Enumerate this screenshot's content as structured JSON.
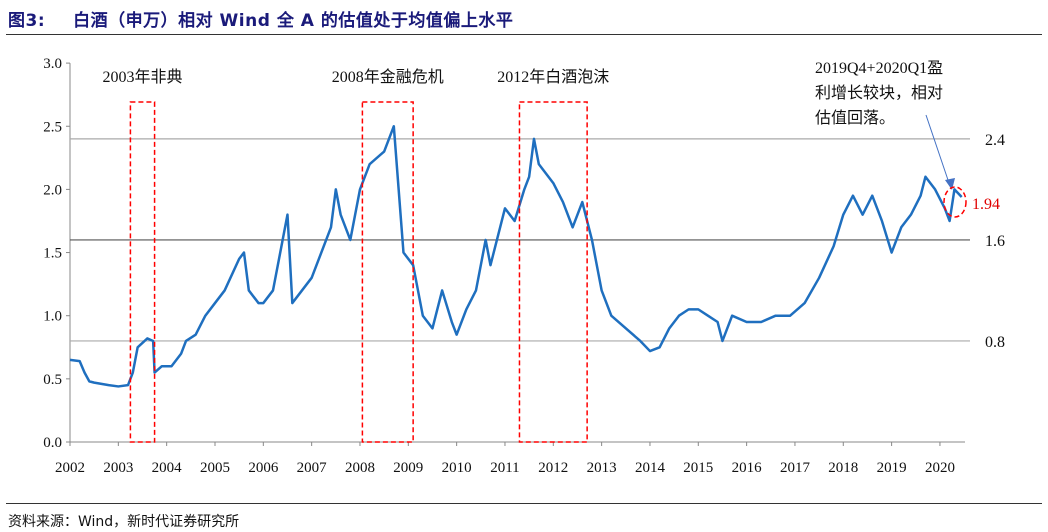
{
  "title": {
    "figure": "图3:",
    "text": "白酒（申万）相对 Wind 全 A 的估值处于均值偏上水平"
  },
  "source": "资料来源：Wind，新时代证券研究所",
  "chart_data": {
    "type": "line",
    "title": "白酒（申万）相对 Wind 全 A 的估值处于均值偏上水平",
    "xlabel": "",
    "ylabel": "",
    "xlim": [
      2002,
      2020.6
    ],
    "ylim": [
      0,
      3.0
    ],
    "x_ticks": [
      "2002",
      "2003",
      "2004",
      "2005",
      "2006",
      "2007",
      "2008",
      "2009",
      "2010",
      "2011",
      "2012",
      "2013",
      "2014",
      "2015",
      "2016",
      "2017",
      "2018",
      "2019",
      "2020"
    ],
    "y_ticks": [
      "0.0",
      "0.5",
      "1.0",
      "1.5",
      "2.0",
      "2.5",
      "3.0"
    ],
    "series": [
      {
        "name": "白酒相对Wind全A估值",
        "color": "#1f6fbf",
        "x": [
          2002.0,
          2002.2,
          2002.3,
          2002.4,
          2002.5,
          2002.8,
          2003.0,
          2003.2,
          2003.3,
          2003.4,
          2003.6,
          2003.72,
          2003.75,
          2003.9,
          2004.1,
          2004.3,
          2004.4,
          2004.6,
          2004.8,
          2005.0,
          2005.2,
          2005.5,
          2005.6,
          2005.7,
          2005.9,
          2006.0,
          2006.2,
          2006.4,
          2006.5,
          2006.6,
          2006.8,
          2007.0,
          2007.2,
          2007.4,
          2007.5,
          2007.6,
          2007.8,
          2008.0,
          2008.2,
          2008.5,
          2008.7,
          2008.8,
          2008.9,
          2009.1,
          2009.3,
          2009.5,
          2009.7,
          2009.9,
          2010.0,
          2010.2,
          2010.4,
          2010.6,
          2010.7,
          2010.9,
          2011.0,
          2011.2,
          2011.4,
          2011.5,
          2011.6,
          2011.7,
          2012.0,
          2012.2,
          2012.4,
          2012.6,
          2012.8,
          2013.0,
          2013.2,
          2013.5,
          2013.8,
          2014.0,
          2014.2,
          2014.4,
          2014.6,
          2014.8,
          2015.0,
          2015.2,
          2015.4,
          2015.5,
          2015.7,
          2016.0,
          2016.3,
          2016.6,
          2016.9,
          2017.2,
          2017.5,
          2017.8,
          2018.0,
          2018.2,
          2018.4,
          2018.6,
          2018.8,
          2019.0,
          2019.2,
          2019.4,
          2019.6,
          2019.7,
          2019.9,
          2020.1,
          2020.2,
          2020.3,
          2020.45
        ],
        "y": [
          0.65,
          0.64,
          0.55,
          0.48,
          0.47,
          0.45,
          0.44,
          0.45,
          0.55,
          0.75,
          0.82,
          0.8,
          0.55,
          0.6,
          0.6,
          0.7,
          0.8,
          0.85,
          1.0,
          1.1,
          1.2,
          1.45,
          1.5,
          1.2,
          1.1,
          1.1,
          1.2,
          1.6,
          1.8,
          1.1,
          1.2,
          1.3,
          1.5,
          1.7,
          2.0,
          1.8,
          1.6,
          2.0,
          2.2,
          2.3,
          2.5,
          2.0,
          1.5,
          1.4,
          1.0,
          0.9,
          1.2,
          0.95,
          0.85,
          1.05,
          1.2,
          1.6,
          1.4,
          1.7,
          1.85,
          1.75,
          2.0,
          2.1,
          2.4,
          2.2,
          2.05,
          1.9,
          1.7,
          1.9,
          1.6,
          1.2,
          1.0,
          0.9,
          0.8,
          0.72,
          0.75,
          0.9,
          1.0,
          1.05,
          1.05,
          1.0,
          0.95,
          0.8,
          1.0,
          0.95,
          0.95,
          1.0,
          1.0,
          1.1,
          1.3,
          1.55,
          1.8,
          1.95,
          1.8,
          1.95,
          1.75,
          1.5,
          1.7,
          1.8,
          1.95,
          2.1,
          2.0,
          1.85,
          1.75,
          2.0,
          1.94
        ]
      }
    ],
    "reference_lines": [
      {
        "value": 2.4,
        "label": "2.4",
        "color": "#aaaaaa"
      },
      {
        "value": 1.6,
        "label": "1.6",
        "color": "#555555"
      },
      {
        "value": 0.8,
        "label": "0.8",
        "color": "#aaaaaa"
      }
    ],
    "highlight_periods": [
      {
        "label": "2003年非典",
        "start": 2003.25,
        "end": 2003.75
      },
      {
        "label": "2008年金融危机",
        "start": 2008.05,
        "end": 2009.1
      },
      {
        "label": "2012年白酒泡沫",
        "start": 2011.3,
        "end": 2012.7
      }
    ],
    "annotations": [
      {
        "lines": [
          "2019Q4+2020Q1盈",
          "利增长较块，相对",
          "估值回落。"
        ],
        "x": 2020.25,
        "y": 1.94
      }
    ],
    "latest_value": {
      "label": "1.94",
      "x": 2020.3,
      "y": 1.94,
      "color": "#e00000"
    },
    "grid": false
  }
}
